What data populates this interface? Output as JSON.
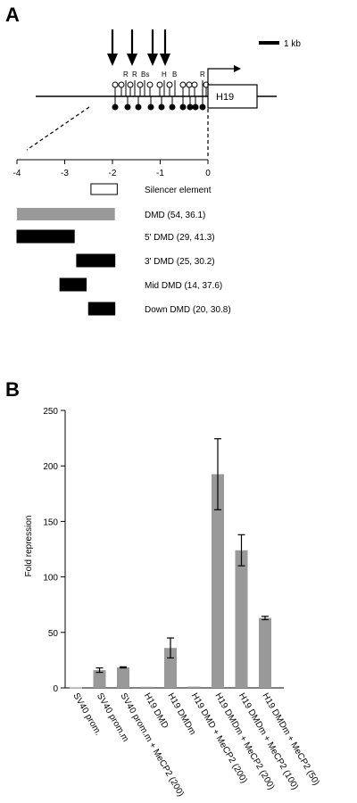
{
  "panel_a": {
    "letter": "A",
    "scale_bar_label": "1 kb",
    "gene_label": "H19",
    "site_labels": [
      "R",
      "R",
      "Bs",
      "H",
      "B",
      "R"
    ],
    "axis_ticks": [
      "-4",
      "-3",
      "-2",
      "-1",
      "0"
    ],
    "constructs": [
      {
        "label": "Silencer element",
        "start": -2.45,
        "end": -1.9,
        "fill": "#ffffff"
      },
      {
        "label": "DMD (54, 36.1)",
        "start": -4.0,
        "end": -1.95,
        "fill": "#999999"
      },
      {
        "label": "5' DMD (29, 41.3)",
        "start": -4.0,
        "end": -2.8,
        "fill": "#000000"
      },
      {
        "label": "3' DMD (25, 30.2)",
        "start": -2.75,
        "end": -1.95,
        "fill": "#000000"
      },
      {
        "label": "Mid DMD (14, 37.6)",
        "start": -3.1,
        "end": -2.55,
        "fill": "#000000"
      },
      {
        "label": "Down DMD (20, 30.8)",
        "start": -2.5,
        "end": -1.95,
        "fill": "#000000"
      }
    ]
  },
  "panel_b": {
    "letter": "B",
    "ylabel": "Fold repression"
  },
  "chart_data": {
    "type": "bar",
    "categories": [
      [
        "SV40 prom.",
        ""
      ],
      [
        "SV40 prom.",
        "m"
      ],
      [
        "SV40 prom.",
        "m + MeCP2 (200)"
      ],
      [
        "H19 DMD",
        ""
      ],
      [
        "H19 DMD",
        "m"
      ],
      [
        "H19 DMD + MeCP2 (200)",
        ""
      ],
      [
        "H19 DMD",
        "m + MeCP2 (200)"
      ],
      [
        "H19 DMD",
        "m + MeCP2 (100)"
      ],
      [
        "H19 DMD",
        "m + MeCP2 (50)"
      ]
    ],
    "values": [
      0.5,
      16,
      18.5,
      1,
      36,
      1.2,
      192.5,
      124,
      63
    ],
    "errors": [
      0,
      2,
      0.5,
      0,
      9,
      0,
      32,
      14,
      1.5
    ],
    "yticks": [
      0,
      50,
      100,
      150,
      200,
      250
    ],
    "ylim": [
      0,
      250
    ],
    "ylabel": "Fold repression",
    "bar_color": "#999999",
    "grid": false
  }
}
